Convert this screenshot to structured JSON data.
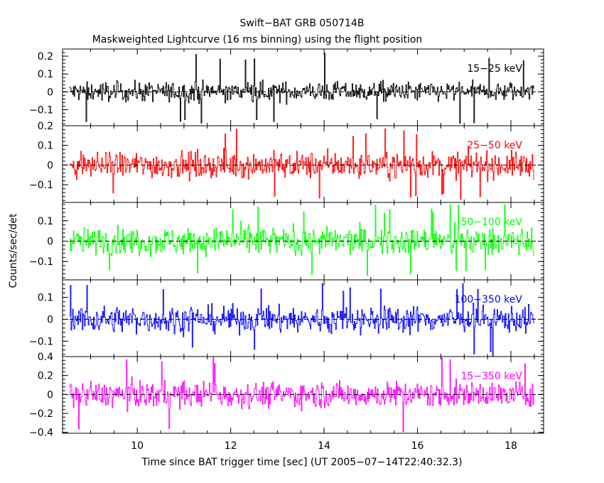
{
  "title": "Swift−BAT GRB 050714B",
  "subtitle": "Maskweighted Lightcurve (16 ms binning) using the flight position",
  "chart_data": {
    "type": "line",
    "xlabel": "Time since BAT trigger time [sec] (UT 2005−07−14T22:40:32.3)",
    "ylabel": "Counts/sec/det",
    "xlim": [
      8.4,
      18.7
    ],
    "x_range": [
      8.55,
      18.5
    ],
    "bin_width_sec": 0.016,
    "x_ticks": [
      "10",
      "12",
      "14",
      "16",
      "18"
    ],
    "legend_placement": "top-right of each panel",
    "panels": [
      {
        "name": "15−25 keV",
        "color": "#000000",
        "ylim": [
          -0.19,
          0.24
        ],
        "y_ticks": [
          0.2,
          0.1,
          0,
          -0.1
        ],
        "y_tick_labels": [
          "0.2",
          "0.1",
          "0",
          "−0.1"
        ],
        "noise_amplitude": 0.05,
        "extremes": [
          0.22,
          -0.18
        ]
      },
      {
        "name": "25−50 keV",
        "color": "#ff0000",
        "ylim": [
          -0.19,
          0.2
        ],
        "y_ticks": [
          0.2,
          0.1,
          0,
          -0.1
        ],
        "y_tick_labels": [
          "0.2",
          "0.1",
          "0",
          "−0.1"
        ],
        "noise_amplitude": 0.06,
        "extremes": [
          0.19,
          -0.18
        ]
      },
      {
        "name": "50−100 keV",
        "color": "#00ff00",
        "ylim": [
          -0.19,
          0.19
        ],
        "y_ticks": [
          0.1,
          0,
          -0.1
        ],
        "y_tick_labels": [
          "0.1",
          "0",
          "−0.1"
        ],
        "noise_amplitude": 0.06,
        "extremes": [
          0.18,
          -0.18
        ]
      },
      {
        "name": "100−350 keV",
        "color": "#0000ff",
        "ylim": [
          -0.17,
          0.18
        ],
        "y_ticks": [
          0.1,
          0,
          -0.1
        ],
        "y_tick_labels": [
          "0.1",
          "0",
          "−0.1"
        ],
        "noise_amplitude": 0.055,
        "extremes": [
          0.17,
          -0.17
        ]
      },
      {
        "name": "15−350 keV",
        "color": "#ff00ff",
        "ylim": [
          -0.41,
          0.4
        ],
        "y_ticks": [
          0.4,
          0.2,
          0,
          -0.2,
          -0.4
        ],
        "y_tick_labels": [
          "0.4",
          "0.2",
          "0",
          "−0.2",
          "−0.4"
        ],
        "noise_amplitude": 0.12,
        "extremes": [
          0.4,
          -0.4
        ]
      }
    ]
  }
}
